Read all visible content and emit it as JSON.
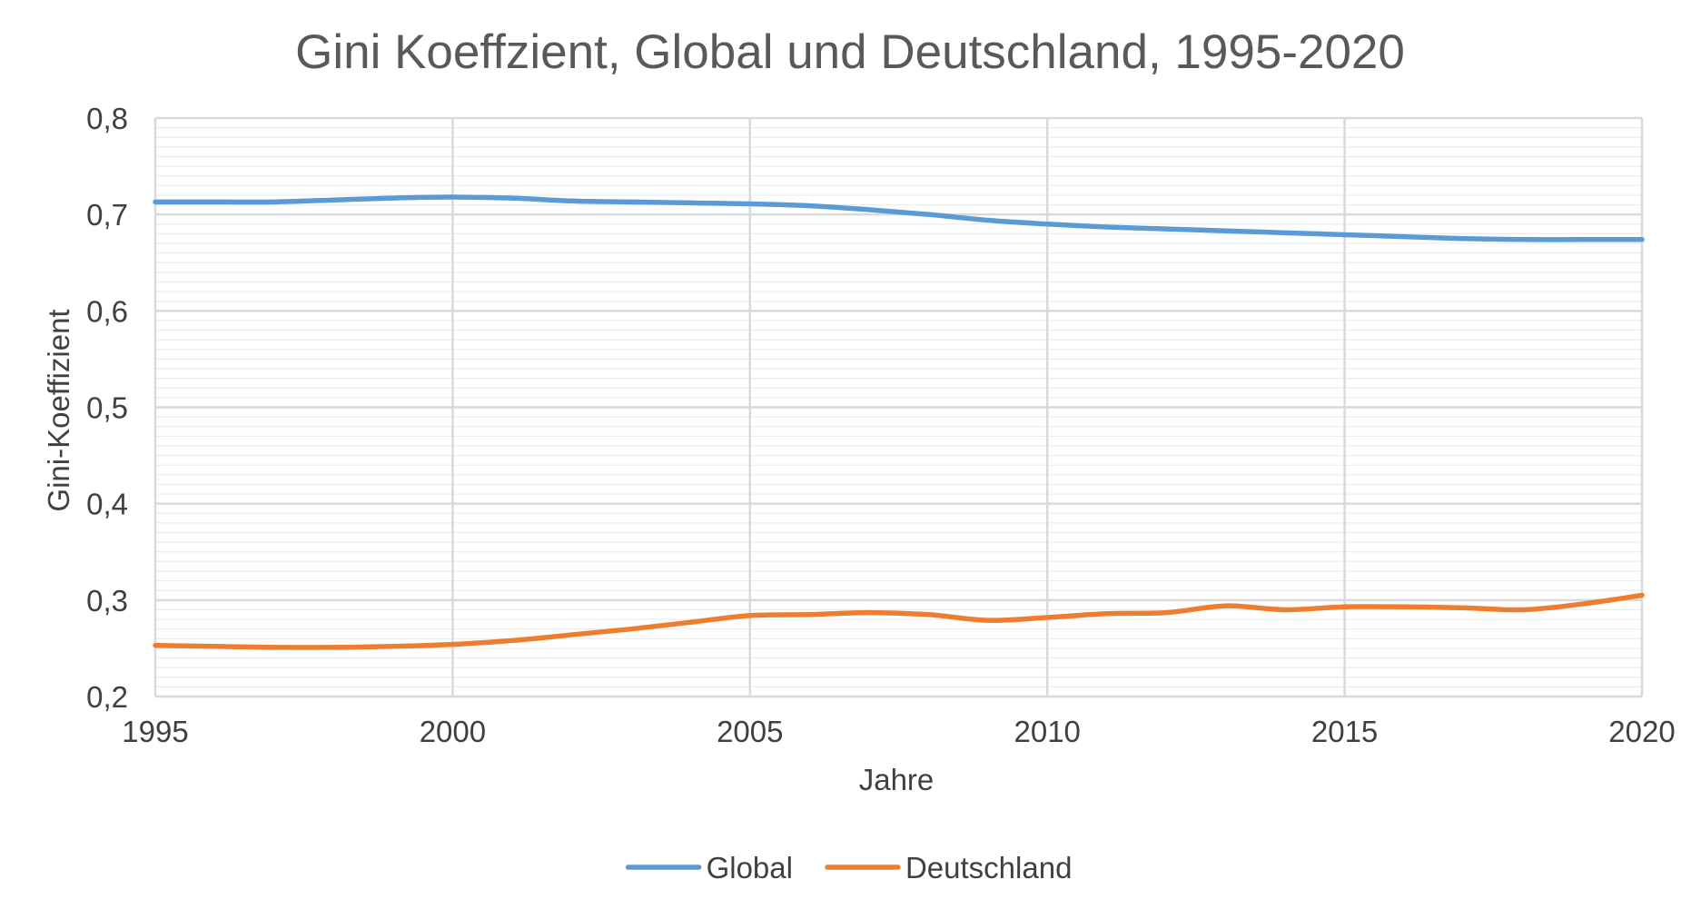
{
  "chart_data": {
    "type": "line",
    "title": "Gini Koeffzient, Global und Deutschland, 1995-2020",
    "xlabel": "Jahre",
    "ylabel": "Gini-Koeffizient",
    "xlim": [
      1995,
      2020
    ],
    "ylim": [
      0.2,
      0.8
    ],
    "x_ticks": [
      "1995",
      "2000",
      "2005",
      "2010",
      "2015",
      "2020"
    ],
    "y_ticks": [
      "0,2",
      "0,3",
      "0,4",
      "0,5",
      "0,6",
      "0,7",
      "0,8"
    ],
    "grid": true,
    "legend_position": "bottom",
    "x": [
      1995,
      1996,
      1997,
      1998,
      1999,
      2000,
      2001,
      2002,
      2003,
      2004,
      2005,
      2006,
      2007,
      2008,
      2009,
      2010,
      2011,
      2012,
      2013,
      2014,
      2015,
      2016,
      2017,
      2018,
      2019,
      2020
    ],
    "series": [
      {
        "name": "Global",
        "color": "#5B9BD5",
        "values": [
          0.713,
          0.713,
          0.713,
          0.715,
          0.717,
          0.718,
          0.717,
          0.714,
          0.713,
          0.712,
          0.711,
          0.709,
          0.705,
          0.7,
          0.694,
          0.69,
          0.687,
          0.685,
          0.683,
          0.681,
          0.679,
          0.677,
          0.675,
          0.674,
          0.674,
          0.674
        ]
      },
      {
        "name": "Deutschland",
        "color": "#ED7D31",
        "values": [
          0.253,
          0.252,
          0.251,
          0.251,
          0.252,
          0.254,
          0.258,
          0.264,
          0.27,
          0.277,
          0.284,
          0.285,
          0.287,
          0.285,
          0.279,
          0.282,
          0.286,
          0.287,
          0.294,
          0.29,
          0.293,
          0.293,
          0.292,
          0.29,
          0.296,
          0.305
        ]
      }
    ]
  }
}
